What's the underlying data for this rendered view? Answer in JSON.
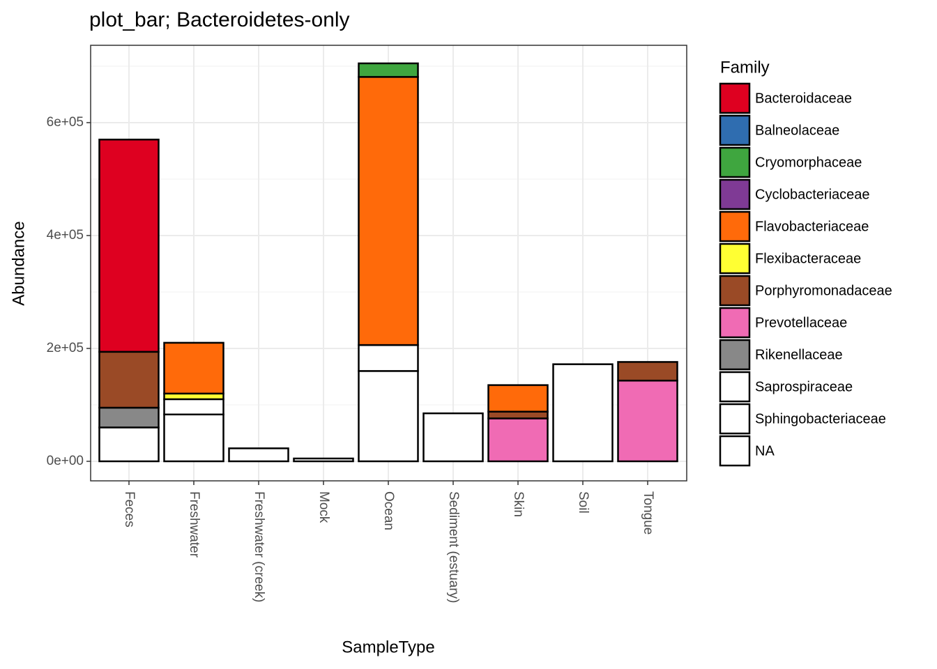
{
  "chart_data": {
    "type": "stacked_bar",
    "title": "plot_bar; Bacteroidetes-only",
    "xlabel": "SampleType",
    "ylabel": "Abundance",
    "legend_title": "Family",
    "legend_position": "right",
    "grid": true,
    "categories": [
      "Feces",
      "Freshwater",
      "Freshwater (creek)",
      "Mock",
      "Ocean",
      "Sediment (estuary)",
      "Skin",
      "Soil",
      "Tongue"
    ],
    "ylim": [
      -34600,
      737000
    ],
    "yticks": [
      {
        "value": 0,
        "label": "0e+00"
      },
      {
        "value": 200000,
        "label": "2e+05"
      },
      {
        "value": 400000,
        "label": "4e+05"
      },
      {
        "value": 600000,
        "label": "6e+05"
      }
    ],
    "series": [
      {
        "name": "Bacteroidaceae",
        "color": "#de0020",
        "values": [
          376000,
          0,
          0,
          0,
          0,
          0,
          0,
          0,
          0
        ]
      },
      {
        "name": "Balneolaceae",
        "color": "#2f6db0",
        "values": [
          0,
          0,
          0,
          0,
          0,
          0,
          0,
          0,
          0
        ]
      },
      {
        "name": "Cryomorphaceae",
        "color": "#3fa63f",
        "values": [
          0,
          0,
          0,
          0,
          24000,
          0,
          0,
          0,
          0
        ]
      },
      {
        "name": "Cyclobacteriaceae",
        "color": "#7f3a95",
        "values": [
          0,
          0,
          0,
          0,
          0,
          0,
          0,
          0,
          0
        ]
      },
      {
        "name": "Flavobacteriaceae",
        "color": "#ff6a0a",
        "values": [
          0,
          90000,
          0,
          0,
          475000,
          0,
          47000,
          0,
          0
        ]
      },
      {
        "name": "Flexibacteraceae",
        "color": "#ffff33",
        "values": [
          0,
          10000,
          0,
          0,
          0,
          0,
          0,
          0,
          0
        ]
      },
      {
        "name": "Porphyromonadaceae",
        "color": "#9a4a26",
        "values": [
          99000,
          0,
          0,
          0,
          0,
          0,
          12000,
          0,
          33000
        ]
      },
      {
        "name": "Prevotellaceae",
        "color": "#f06bb4",
        "values": [
          0,
          0,
          0,
          0,
          0,
          0,
          76000,
          0,
          143000
        ]
      },
      {
        "name": "Rikenellaceae",
        "color": "#888888",
        "values": [
          35000,
          0,
          0,
          0,
          0,
          0,
          0,
          0,
          0
        ]
      },
      {
        "name": "Saprospiraceae",
        "color": "#ffffff",
        "values": [
          0,
          0,
          0,
          0,
          0,
          0,
          0,
          0,
          0
        ]
      },
      {
        "name": "Sphingobacteriaceae",
        "color": "#ffffff",
        "values": [
          0,
          27000,
          0,
          0,
          46000,
          0,
          0,
          0,
          0
        ]
      },
      {
        "name": "NA",
        "color": "#ffffff",
        "values": [
          60000,
          83000,
          23000,
          5000,
          160000,
          85000,
          0,
          172000,
          0
        ]
      }
    ]
  }
}
